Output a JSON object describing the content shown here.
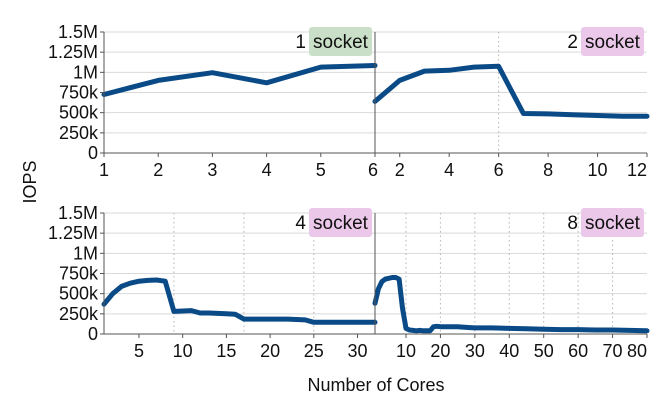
{
  "axes": {
    "ylabel": "IOPS",
    "xlabel": "Number of Cores",
    "yticks": [
      "0",
      "250k",
      "500k",
      "750k",
      "1M",
      "1.25M",
      "1.5M"
    ]
  },
  "chart_data": [
    {
      "type": "line",
      "title_number": "1",
      "title_word": "socket",
      "badge_color": "#c9dfc7",
      "line_color": "#0a4a86",
      "xlim": [
        1,
        6
      ],
      "ylim": [
        0,
        1500000
      ],
      "xticks": [
        1,
        2,
        3,
        4,
        5,
        6
      ],
      "dotted_vlines": [],
      "series": [
        {
          "x": [
            1,
            2,
            3,
            4,
            5,
            6
          ],
          "y": [
            725000,
            900000,
            995000,
            870000,
            1065000,
            1085000
          ]
        }
      ]
    },
    {
      "type": "line",
      "title_number": "2",
      "title_word": "socket",
      "badge_color": "#ebc8ea",
      "line_color": "#0a4a86",
      "xlim": [
        1,
        12
      ],
      "ylim": [
        0,
        1500000
      ],
      "xticks": [
        2,
        4,
        6,
        8,
        10,
        12
      ],
      "dotted_vlines": [
        6
      ],
      "series": [
        {
          "x": [
            1,
            2,
            3,
            4,
            5,
            6,
            7,
            8,
            9,
            10,
            11,
            12
          ],
          "y": [
            640000,
            900000,
            1015000,
            1025000,
            1065000,
            1075000,
            490000,
            485000,
            475000,
            465000,
            455000,
            455000
          ]
        }
      ]
    },
    {
      "type": "line",
      "title_number": "4",
      "title_word": "socket",
      "badge_color": "#ebc8ea",
      "line_color": "#0a4a86",
      "xlim": [
        1,
        32
      ],
      "ylim": [
        0,
        1500000
      ],
      "xticks": [
        5,
        10,
        15,
        20,
        25,
        30
      ],
      "dotted_vlines": [
        9,
        17,
        25
      ],
      "series": [
        {
          "x": [
            1,
            2,
            3,
            4,
            5,
            6,
            7,
            8,
            9,
            10,
            11,
            12,
            13,
            14,
            15,
            16,
            17,
            18,
            19,
            20,
            21,
            22,
            23,
            24,
            25,
            26,
            27,
            28,
            29,
            30,
            31,
            32
          ],
          "y": [
            370000,
            500000,
            590000,
            630000,
            655000,
            665000,
            670000,
            655000,
            280000,
            285000,
            290000,
            260000,
            260000,
            255000,
            250000,
            245000,
            185000,
            185000,
            185000,
            185000,
            185000,
            185000,
            180000,
            175000,
            145000,
            145000,
            145000,
            145000,
            145000,
            145000,
            145000,
            145000
          ]
        }
      ]
    },
    {
      "type": "line",
      "title_number": "8",
      "title_word": "socket",
      "badge_color": "#ebc8ea",
      "line_color": "#0a4a86",
      "xlim": [
        1,
        80
      ],
      "ylim": [
        0,
        1500000
      ],
      "xticks": [
        10,
        20,
        30,
        40,
        50,
        60,
        70,
        80
      ],
      "dotted_vlines": [
        10,
        20,
        30,
        40,
        50,
        60,
        70
      ],
      "series": [
        {
          "x": [
            1,
            2,
            3,
            4,
            5,
            6,
            7,
            8,
            9,
            10,
            11,
            12,
            13,
            14,
            15,
            16,
            17,
            18,
            19,
            20,
            21,
            22,
            25,
            28,
            30,
            35,
            40,
            45,
            50,
            55,
            60,
            65,
            70,
            75,
            80
          ],
          "y": [
            380000,
            560000,
            650000,
            680000,
            690000,
            700000,
            700000,
            680000,
            320000,
            70000,
            50000,
            45000,
            40000,
            45000,
            40000,
            40000,
            40000,
            90000,
            95000,
            90000,
            90000,
            90000,
            90000,
            80000,
            75000,
            75000,
            70000,
            65000,
            60000,
            55000,
            55000,
            50000,
            50000,
            45000,
            40000
          ]
        }
      ]
    }
  ]
}
